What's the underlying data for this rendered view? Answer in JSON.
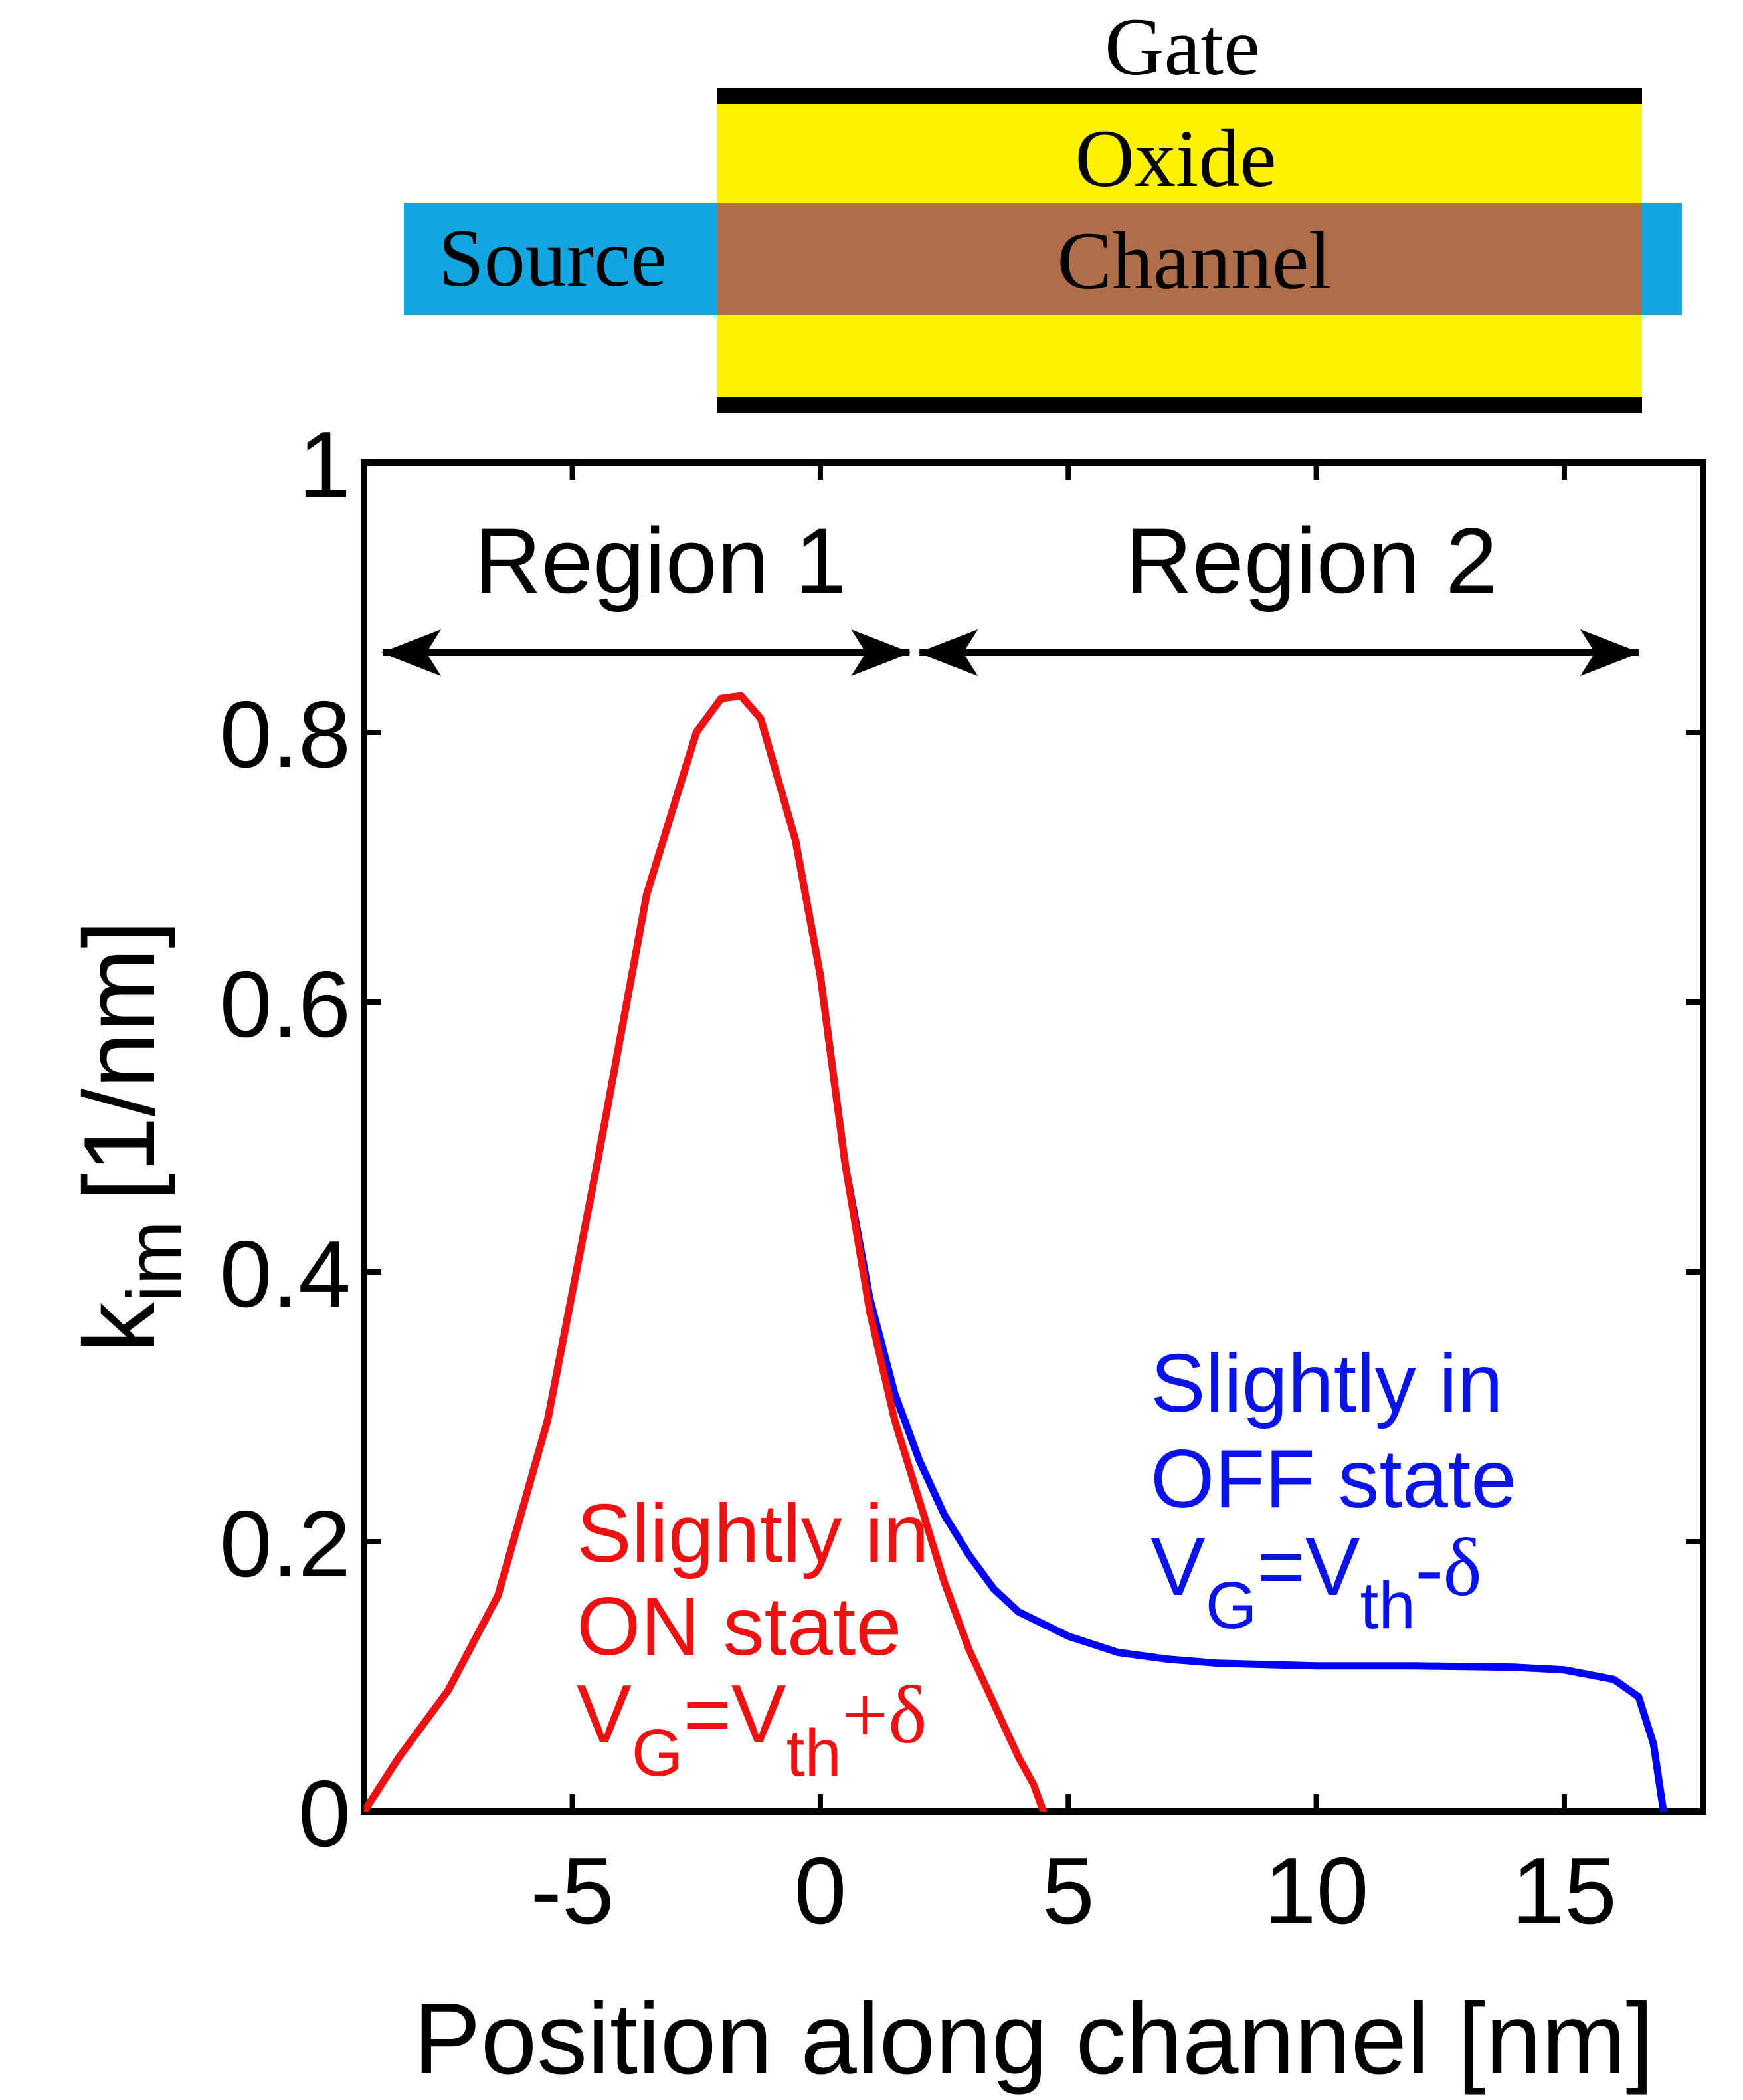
{
  "device": {
    "gate_label": "Gate",
    "oxide_label": "Oxide",
    "source_label": "Source",
    "channel_label": "Channel",
    "colors": {
      "oxide": "#fff200",
      "channel": "#b06d4a",
      "source": "#12a5e0",
      "gate": "#000000"
    }
  },
  "chart_data": {
    "type": "line",
    "title": "",
    "xlabel": "Position along channel [nm]",
    "ylabel_main": "k",
    "ylabel_sub": "im",
    "ylabel_unit": "[1/nm]",
    "xlim": [
      -9.2,
      17.8
    ],
    "ylim": [
      0,
      1
    ],
    "x_ticks": [
      -5,
      0,
      5,
      10,
      15
    ],
    "x_tick_labels": [
      "-5",
      "0",
      "5",
      "10",
      "15"
    ],
    "y_ticks": [
      0,
      0.2,
      0.4,
      0.6,
      0.8,
      1
    ],
    "y_tick_labels": [
      "0",
      "0.2",
      "0.4",
      "0.6",
      "0.8",
      "1"
    ],
    "regions": [
      {
        "label": "Region 1",
        "from": -9.2,
        "to": 1.8
      },
      {
        "label": "Region 2",
        "from": 2.0,
        "to": 16.5
      }
    ],
    "series": [
      {
        "name": "OFF state",
        "color": "#0000ff",
        "x": [
          -9.2,
          -8.5,
          -7.5,
          -6.5,
          -5.5,
          -4.5,
          -3.5,
          -2.5,
          -2.0,
          -1.6,
          -1.2,
          -0.5,
          0.0,
          0.5,
          1.0,
          1.5,
          2.0,
          2.5,
          3.0,
          3.5,
          4.0,
          5.0,
          6.0,
          7.0,
          8.0,
          10.0,
          12.0,
          14.0,
          15.0,
          16.0,
          16.5,
          16.8,
          17.0
        ],
        "y": [
          0.0,
          0.04,
          0.09,
          0.16,
          0.29,
          0.48,
          0.68,
          0.8,
          0.825,
          0.827,
          0.81,
          0.72,
          0.62,
          0.48,
          0.38,
          0.31,
          0.26,
          0.22,
          0.19,
          0.165,
          0.148,
          0.13,
          0.118,
          0.113,
          0.11,
          0.108,
          0.108,
          0.107,
          0.105,
          0.098,
          0.085,
          0.05,
          0.0
        ]
      },
      {
        "name": "ON state",
        "color": "#ee1111",
        "x": [
          -9.2,
          -8.5,
          -7.5,
          -6.5,
          -5.5,
          -4.5,
          -3.5,
          -2.5,
          -2.0,
          -1.6,
          -1.2,
          -0.5,
          0.0,
          0.5,
          1.0,
          1.5,
          2.0,
          2.5,
          3.0,
          3.5,
          4.0,
          4.3,
          4.5
        ],
        "y": [
          0.0,
          0.04,
          0.09,
          0.16,
          0.29,
          0.48,
          0.68,
          0.8,
          0.825,
          0.827,
          0.81,
          0.72,
          0.62,
          0.48,
          0.37,
          0.29,
          0.23,
          0.17,
          0.12,
          0.08,
          0.04,
          0.02,
          0.0
        ]
      }
    ],
    "annotations": [
      {
        "series": "ON state",
        "lines": [
          "Slightly in",
          "ON state"
        ],
        "eq_main": "V",
        "eq_sub1": "G",
        "eq_mid": "=V",
        "eq_sub2": "th",
        "eq_end": "+δ"
      },
      {
        "series": "OFF state",
        "lines": [
          "Slightly in",
          "OFF state"
        ],
        "eq_main": "V",
        "eq_sub1": "G",
        "eq_mid": "=V",
        "eq_sub2": "th",
        "eq_end": "-δ"
      }
    ]
  }
}
